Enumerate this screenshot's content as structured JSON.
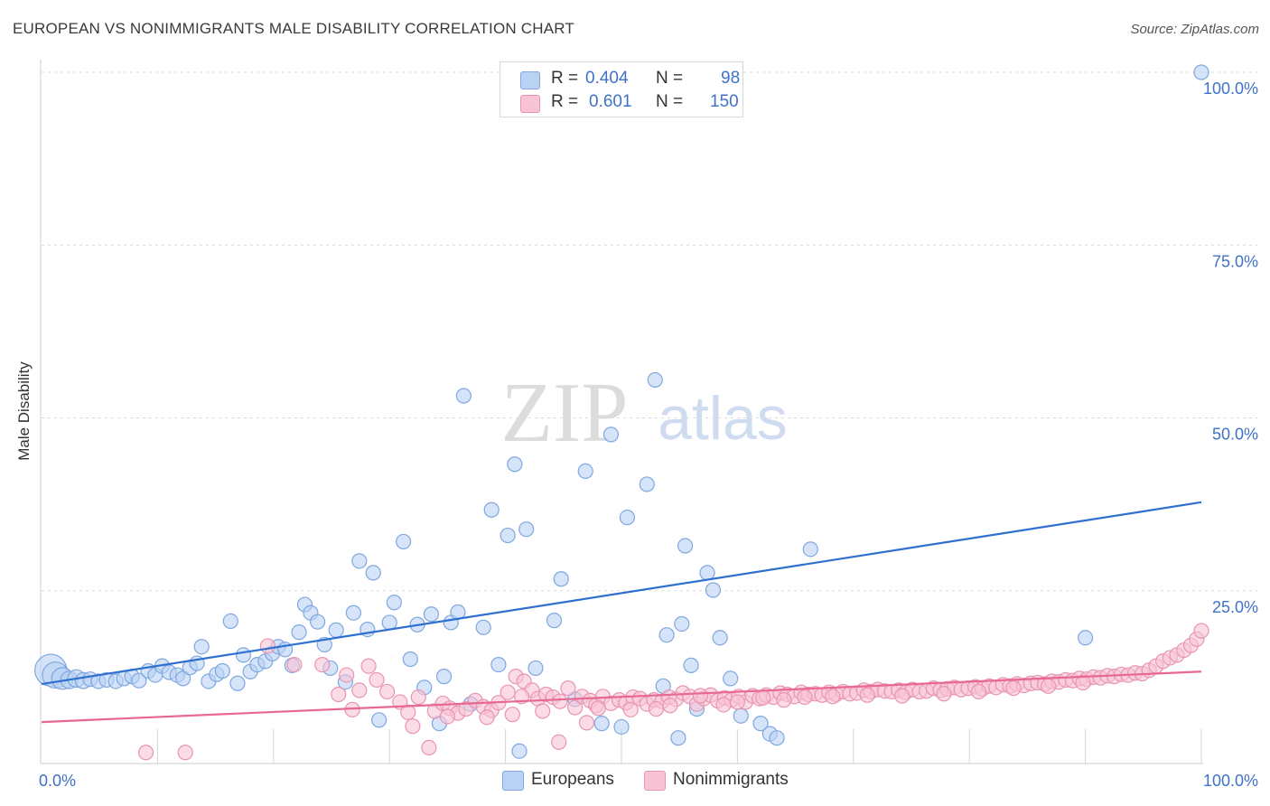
{
  "title": "EUROPEAN VS NONIMMIGRANTS MALE DISABILITY CORRELATION CHART",
  "source": "Source: ZipAtlas.com",
  "watermark": {
    "zip": "ZIP",
    "atlas": "atlas"
  },
  "legend_stats": [
    {
      "r_label": "R =",
      "r_value": "0.404",
      "n_label": "N =",
      "n_value": "98",
      "color": "#b9d2f4",
      "border": "#7fa7e0"
    },
    {
      "r_label": "R =",
      "r_value": "0.601",
      "n_label": "N =",
      "n_value": "150",
      "color": "#f8c3d4",
      "border": "#e895b1"
    }
  ],
  "bottom_legend": [
    {
      "label": "Europeans",
      "color": "#b9d2f4",
      "border": "#7fa7e0"
    },
    {
      "label": "Nonimmigrants",
      "color": "#f8c3d4",
      "border": "#e895b1"
    }
  ],
  "chart_data": {
    "type": "scatter",
    "title": "EUROPEAN VS NONIMMIGRANTS MALE DISABILITY CORRELATION CHART",
    "xlabel": "",
    "ylabel": "Male Disability",
    "xlim": [
      0,
      100
    ],
    "ylim": [
      0,
      100
    ],
    "x_tick_labels": [
      "0.0%",
      "100.0%"
    ],
    "y_ticks": [
      25,
      50,
      75,
      100
    ],
    "y_tick_labels": [
      "25.0%",
      "50.0%",
      "75.0%",
      "100.0%"
    ],
    "grid": true,
    "legend_position": "top-center",
    "series": [
      {
        "name": "Europeans",
        "color": "#7fa7e0",
        "fill": "#b9d2f4",
        "line_color": "#2f6fd0",
        "trend": {
          "x": [
            0,
            100
          ],
          "y": [
            11.5,
            37.8
          ]
        },
        "points": [
          [
            0.8,
            13.5,
            2.2
          ],
          [
            1.2,
            12.8,
            1.8
          ],
          [
            1.8,
            12.3,
            1.5
          ],
          [
            2.4,
            12.1,
            1.2
          ],
          [
            3.0,
            12.3,
            1.2
          ],
          [
            3.6,
            12.0,
            1.1
          ],
          [
            4.2,
            12.2,
            1.0
          ],
          [
            4.9,
            11.9,
            1.0
          ],
          [
            5.6,
            12.1,
            1.0
          ],
          [
            6.4,
            11.9,
            1.0
          ],
          [
            7.1,
            12.3,
            1.0
          ],
          [
            7.8,
            12.6,
            1.0
          ],
          [
            8.4,
            12.0,
            1.0
          ],
          [
            9.2,
            13.4,
            1.0
          ],
          [
            9.8,
            12.8,
            1.0
          ],
          [
            10.4,
            14.1,
            1.0
          ],
          [
            11.0,
            13.2,
            1.0
          ],
          [
            11.7,
            12.8,
            1.0
          ],
          [
            12.2,
            12.3,
            1.0
          ],
          [
            12.8,
            13.9,
            1.0
          ],
          [
            13.4,
            14.5,
            1.0
          ],
          [
            13.8,
            16.9,
            1.0
          ],
          [
            14.4,
            11.9,
            1.0
          ],
          [
            15.1,
            12.9,
            1.0
          ],
          [
            15.6,
            13.4,
            1.0
          ],
          [
            16.3,
            20.6,
            1.0
          ],
          [
            16.9,
            11.6,
            1.0
          ],
          [
            17.4,
            15.7,
            1.0
          ],
          [
            18.0,
            13.3,
            1.0
          ],
          [
            18.6,
            14.3,
            1.0
          ],
          [
            19.3,
            14.8,
            1.0
          ],
          [
            19.9,
            15.9,
            1.0
          ],
          [
            20.4,
            16.9,
            1.0
          ],
          [
            21.0,
            16.5,
            1.0
          ],
          [
            21.6,
            14.2,
            1.0
          ],
          [
            22.2,
            19.0,
            1.0
          ],
          [
            22.7,
            23.0,
            1.0
          ],
          [
            23.2,
            21.8,
            1.0
          ],
          [
            23.8,
            20.5,
            1.0
          ],
          [
            24.4,
            17.2,
            1.0
          ],
          [
            24.9,
            13.8,
            1.0
          ],
          [
            25.4,
            19.3,
            1.0
          ],
          [
            26.2,
            11.8,
            1.0
          ],
          [
            26.9,
            21.8,
            1.0
          ],
          [
            27.4,
            29.3,
            1.0
          ],
          [
            28.1,
            19.4,
            1.0
          ],
          [
            28.6,
            27.6,
            1.0
          ],
          [
            29.1,
            6.3,
            1.0
          ],
          [
            30.0,
            20.4,
            1.0
          ],
          [
            30.4,
            23.3,
            1.0
          ],
          [
            31.2,
            32.1,
            1.0
          ],
          [
            31.8,
            15.1,
            1.0
          ],
          [
            32.4,
            20.1,
            1.0
          ],
          [
            33.0,
            11.0,
            1.0
          ],
          [
            33.6,
            21.6,
            1.0
          ],
          [
            34.3,
            5.8,
            1.0
          ],
          [
            34.7,
            12.6,
            1.0
          ],
          [
            35.3,
            20.4,
            1.0
          ],
          [
            35.9,
            21.9,
            1.0
          ],
          [
            36.4,
            53.2,
            1.0
          ],
          [
            37.0,
            8.6,
            1.0
          ],
          [
            38.1,
            19.7,
            1.0
          ],
          [
            38.8,
            36.7,
            1.0
          ],
          [
            39.4,
            14.3,
            1.0
          ],
          [
            40.2,
            33.0,
            1.0
          ],
          [
            40.8,
            43.3,
            1.0
          ],
          [
            41.2,
            1.8,
            1.0
          ],
          [
            41.8,
            33.9,
            1.0
          ],
          [
            42.6,
            13.8,
            1.0
          ],
          [
            44.2,
            20.7,
            1.0
          ],
          [
            44.8,
            26.7,
            1.0
          ],
          [
            46.0,
            9.3,
            1.0
          ],
          [
            46.9,
            42.3,
            1.0
          ],
          [
            48.3,
            5.8,
            1.0
          ],
          [
            49.1,
            47.6,
            1.0
          ],
          [
            50.0,
            5.3,
            1.0
          ],
          [
            50.5,
            35.6,
            1.0
          ],
          [
            52.2,
            40.4,
            1.0
          ],
          [
            52.9,
            55.5,
            1.0
          ],
          [
            53.6,
            11.2,
            1.0
          ],
          [
            53.9,
            18.6,
            1.0
          ],
          [
            54.9,
            3.7,
            1.0
          ],
          [
            55.2,
            20.2,
            1.0
          ],
          [
            55.5,
            31.5,
            1.0
          ],
          [
            56.0,
            14.2,
            1.0
          ],
          [
            56.5,
            7.9,
            1.0
          ],
          [
            57.4,
            27.6,
            1.0
          ],
          [
            57.9,
            25.1,
            1.0
          ],
          [
            58.5,
            18.2,
            1.0
          ],
          [
            59.4,
            12.3,
            1.0
          ],
          [
            60.3,
            6.9,
            1.0
          ],
          [
            62.0,
            5.8,
            1.0
          ],
          [
            62.8,
            4.3,
            1.0
          ],
          [
            63.4,
            3.7,
            1.0
          ],
          [
            66.3,
            31.0,
            1.0
          ],
          [
            90.0,
            18.2,
            1.0
          ],
          [
            100.0,
            100.0,
            1.0
          ]
        ]
      },
      {
        "name": "Nonimmigrants",
        "color": "#e895b1",
        "fill": "#f8c3d4",
        "line_color": "#e8688f",
        "trend": {
          "x": [
            0,
            100
          ],
          "y": [
            6.0,
            13.3
          ]
        },
        "points": [
          [
            9.0,
            1.6
          ],
          [
            12.4,
            1.6
          ],
          [
            19.5,
            17.0
          ],
          [
            21.8,
            14.3
          ],
          [
            24.2,
            14.3
          ],
          [
            25.6,
            10.0
          ],
          [
            26.3,
            12.8
          ],
          [
            26.8,
            7.8
          ],
          [
            27.4,
            10.6
          ],
          [
            28.2,
            14.1
          ],
          [
            28.9,
            12.1
          ],
          [
            29.8,
            10.4
          ],
          [
            30.9,
            8.9
          ],
          [
            31.6,
            7.4
          ],
          [
            32.5,
            9.6
          ],
          [
            33.4,
            2.3
          ],
          [
            33.9,
            7.6
          ],
          [
            34.6,
            8.7
          ],
          [
            35.2,
            8.0
          ],
          [
            35.9,
            7.3
          ],
          [
            36.6,
            7.9
          ],
          [
            37.4,
            9.1
          ],
          [
            38.1,
            8.2
          ],
          [
            38.8,
            7.7
          ],
          [
            39.4,
            8.8
          ],
          [
            40.2,
            10.3
          ],
          [
            40.9,
            12.6
          ],
          [
            41.6,
            11.9
          ],
          [
            42.3,
            10.6
          ],
          [
            42.8,
            9.4
          ],
          [
            43.5,
            10.0
          ],
          [
            44.1,
            9.6
          ],
          [
            44.7,
            9.0
          ],
          [
            45.4,
            10.9
          ],
          [
            46.0,
            8.1
          ],
          [
            46.6,
            9.7
          ],
          [
            47.3,
            9.1
          ],
          [
            47.8,
            8.4
          ],
          [
            48.4,
            9.7
          ],
          [
            49.1,
            8.7
          ],
          [
            49.8,
            9.2
          ],
          [
            50.4,
            8.8
          ],
          [
            51.0,
            9.6
          ],
          [
            51.6,
            9.4
          ],
          [
            52.2,
            8.6
          ],
          [
            52.8,
            9.2
          ],
          [
            53.5,
            9.0
          ],
          [
            54.1,
            9.6
          ],
          [
            54.7,
            9.3
          ],
          [
            55.3,
            10.2
          ],
          [
            55.9,
            9.7
          ],
          [
            56.5,
            8.6
          ],
          [
            57.1,
            9.4
          ],
          [
            57.7,
            9.9
          ],
          [
            58.3,
            9.1
          ],
          [
            58.9,
            9.5
          ],
          [
            59.5,
            9.2
          ],
          [
            60.1,
            9.7
          ],
          [
            60.7,
            8.9
          ],
          [
            61.3,
            9.8
          ],
          [
            61.9,
            9.4
          ],
          [
            62.5,
            9.9
          ],
          [
            63.1,
            9.6
          ],
          [
            63.7,
            10.2
          ],
          [
            64.3,
            10.0
          ],
          [
            64.9,
            9.7
          ],
          [
            65.5,
            10.3
          ],
          [
            66.1,
            10.0
          ],
          [
            66.7,
            10.1
          ],
          [
            67.3,
            9.9
          ],
          [
            67.9,
            10.3
          ],
          [
            68.5,
            10.0
          ],
          [
            69.1,
            10.4
          ],
          [
            69.7,
            10.1
          ],
          [
            70.3,
            10.2
          ],
          [
            70.9,
            10.6
          ],
          [
            71.5,
            10.4
          ],
          [
            72.1,
            10.7
          ],
          [
            72.7,
            10.5
          ],
          [
            73.3,
            10.4
          ],
          [
            73.9,
            10.6
          ],
          [
            74.5,
            10.3
          ],
          [
            75.1,
            10.7
          ],
          [
            75.7,
            10.4
          ],
          [
            76.3,
            10.5
          ],
          [
            76.9,
            10.9
          ],
          [
            77.5,
            10.6
          ],
          [
            78.1,
            10.8
          ],
          [
            78.7,
            11.0
          ],
          [
            79.3,
            10.7
          ],
          [
            79.9,
            10.9
          ],
          [
            80.5,
            11.1
          ],
          [
            81.1,
            10.8
          ],
          [
            81.7,
            11.2
          ],
          [
            82.3,
            11.0
          ],
          [
            82.9,
            11.4
          ],
          [
            83.5,
            11.2
          ],
          [
            84.1,
            11.5
          ],
          [
            84.7,
            11.3
          ],
          [
            85.3,
            11.6
          ],
          [
            85.9,
            11.7
          ],
          [
            86.5,
            11.5
          ],
          [
            87.1,
            11.9
          ],
          [
            87.7,
            11.8
          ],
          [
            88.3,
            12.1
          ],
          [
            88.9,
            12.0
          ],
          [
            89.5,
            12.3
          ],
          [
            90.1,
            12.2
          ],
          [
            90.7,
            12.5
          ],
          [
            91.3,
            12.4
          ],
          [
            91.9,
            12.7
          ],
          [
            92.5,
            12.6
          ],
          [
            93.1,
            12.9
          ],
          [
            93.7,
            12.8
          ],
          [
            94.3,
            13.1
          ],
          [
            94.9,
            13.0
          ],
          [
            95.5,
            13.5
          ],
          [
            96.1,
            14.1
          ],
          [
            96.7,
            14.8
          ],
          [
            97.3,
            15.3
          ],
          [
            97.9,
            15.7
          ],
          [
            98.5,
            16.4
          ],
          [
            99.1,
            17.1
          ],
          [
            99.6,
            18.0
          ],
          [
            100.0,
            19.2
          ],
          [
            32.0,
            5.4
          ],
          [
            35.0,
            6.8
          ],
          [
            38.4,
            6.7
          ],
          [
            40.6,
            7.1
          ],
          [
            41.4,
            9.7
          ],
          [
            43.2,
            7.6
          ],
          [
            44.6,
            3.1
          ],
          [
            47.0,
            5.9
          ],
          [
            48.0,
            8.0
          ],
          [
            50.8,
            7.8
          ],
          [
            53.0,
            7.9
          ],
          [
            54.2,
            8.4
          ],
          [
            56.8,
            9.8
          ],
          [
            58.8,
            8.5
          ],
          [
            60.0,
            8.9
          ],
          [
            62.2,
            9.5
          ],
          [
            64.0,
            9.2
          ],
          [
            65.8,
            9.6
          ],
          [
            68.2,
            9.7
          ],
          [
            71.2,
            9.9
          ],
          [
            74.2,
            9.8
          ],
          [
            77.8,
            10.1
          ],
          [
            80.8,
            10.4
          ],
          [
            83.8,
            10.9
          ],
          [
            86.8,
            11.2
          ],
          [
            89.8,
            11.7
          ]
        ]
      }
    ]
  }
}
